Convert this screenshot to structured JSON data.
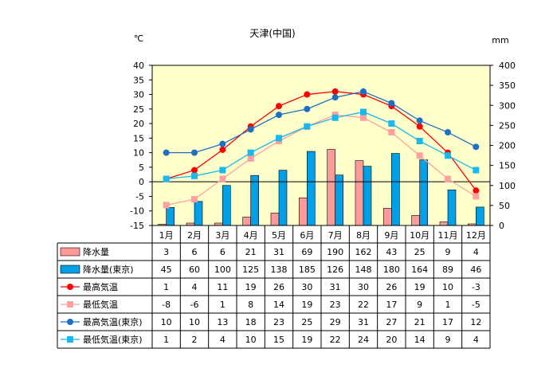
{
  "chart_data": {
    "type": "bar",
    "title": "天津(中国)",
    "left_unit": "℃",
    "right_unit": "mm",
    "categories": [
      "1月",
      "2月",
      "3月",
      "4月",
      "5月",
      "6月",
      "7月",
      "8月",
      "9月",
      "10月",
      "11月",
      "12月"
    ],
    "left_axis": {
      "min": -15,
      "max": 40,
      "ticks": [
        "40",
        "35",
        "30",
        "25",
        "20",
        "15",
        "10",
        "5",
        "0",
        "-5",
        "-10",
        "-15"
      ]
    },
    "right_axis": {
      "min": 0,
      "max": 400,
      "ticks": [
        "400",
        "350",
        "300",
        "250",
        "200",
        "150",
        "100",
        "50",
        "0"
      ]
    },
    "series": [
      {
        "name": "降水量",
        "kind": "bar",
        "axis": "right",
        "color": "#ff9a9a",
        "values": [
          3,
          6,
          6,
          21,
          31,
          69,
          190,
          162,
          43,
          25,
          9,
          4
        ],
        "labels": [
          "3",
          "6",
          "6",
          "21",
          "31",
          "69",
          "190",
          "162",
          "43",
          "25",
          "9",
          "4"
        ]
      },
      {
        "name": "降水量(東京)",
        "kind": "bar",
        "axis": "right",
        "color": "#00a0e8",
        "values": [
          45,
          60,
          100,
          125,
          138,
          185,
          126,
          148,
          180,
          164,
          89,
          46
        ],
        "labels": [
          "45",
          "60",
          "100",
          "125",
          "138",
          "185",
          "126",
          "148",
          "180",
          "164",
          "89",
          "46"
        ]
      },
      {
        "name": "最高気温",
        "kind": "line",
        "marker": "circle",
        "axis": "left",
        "color": "#ff0000",
        "values": [
          1,
          4,
          11,
          19,
          26,
          30,
          31,
          30,
          26,
          19,
          10,
          -3
        ],
        "labels": [
          "1",
          "4",
          "11",
          "19",
          "26",
          "30",
          "31",
          "30",
          "26",
          "19",
          "10",
          "-3"
        ]
      },
      {
        "name": "最低気温",
        "kind": "line",
        "marker": "square",
        "axis": "left",
        "color": "#ffa0a0",
        "values": [
          -8,
          -6,
          1,
          8,
          14,
          19,
          23,
          22,
          17,
          9,
          1,
          -5
        ],
        "labels": [
          "-8",
          "-6",
          "1",
          "8",
          "14",
          "19",
          "23",
          "22",
          "17",
          "9",
          "1",
          "-5"
        ]
      },
      {
        "name": "最高気温(東京)",
        "kind": "line",
        "marker": "circle",
        "axis": "left",
        "color": "#1c6fc4",
        "values": [
          10,
          10,
          13,
          18,
          23,
          25,
          29,
          31,
          27,
          21,
          17,
          12
        ],
        "labels": [
          "10",
          "10",
          "13",
          "18",
          "23",
          "25",
          "29",
          "31",
          "27",
          "21",
          "17",
          "12"
        ]
      },
      {
        "name": "最低気温(東京)",
        "kind": "line",
        "marker": "square",
        "axis": "left",
        "color": "#18b8f0",
        "values": [
          1,
          2,
          4,
          10,
          15,
          19,
          22,
          24,
          20,
          14,
          9,
          4
        ],
        "labels": [
          "1",
          "2",
          "4",
          "10",
          "15",
          "19",
          "22",
          "24",
          "20",
          "14",
          "9",
          "4"
        ]
      }
    ],
    "plot_background": "#ffffcc",
    "grid": false,
    "legend": "data-table"
  }
}
